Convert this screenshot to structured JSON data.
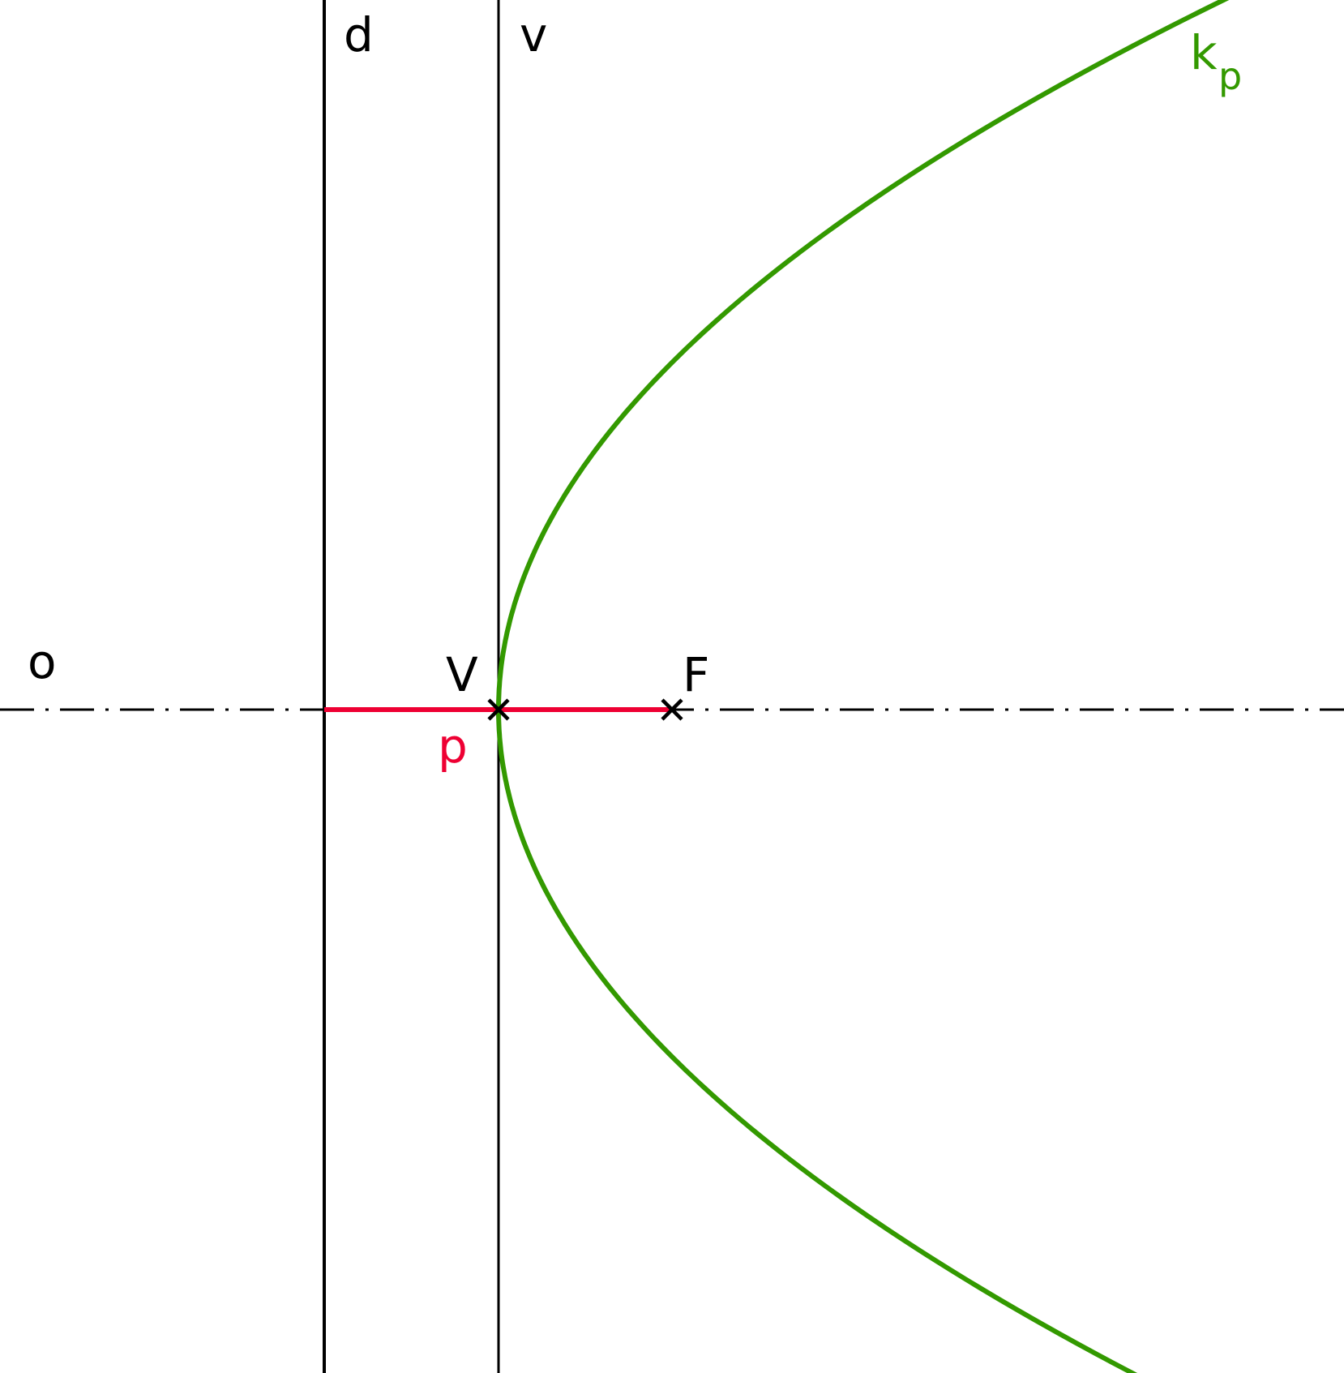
{
  "labels": {
    "axis": "o",
    "directrix": "d",
    "vertex_tangent": "v",
    "vertex": "V",
    "focus": "F",
    "parameter": "p",
    "curve": "k",
    "curve_subscript": "p"
  },
  "colors": {
    "curve": "#339900",
    "parameter": "#ee0033",
    "lines": "#000000",
    "background": "#ffffff"
  }
}
